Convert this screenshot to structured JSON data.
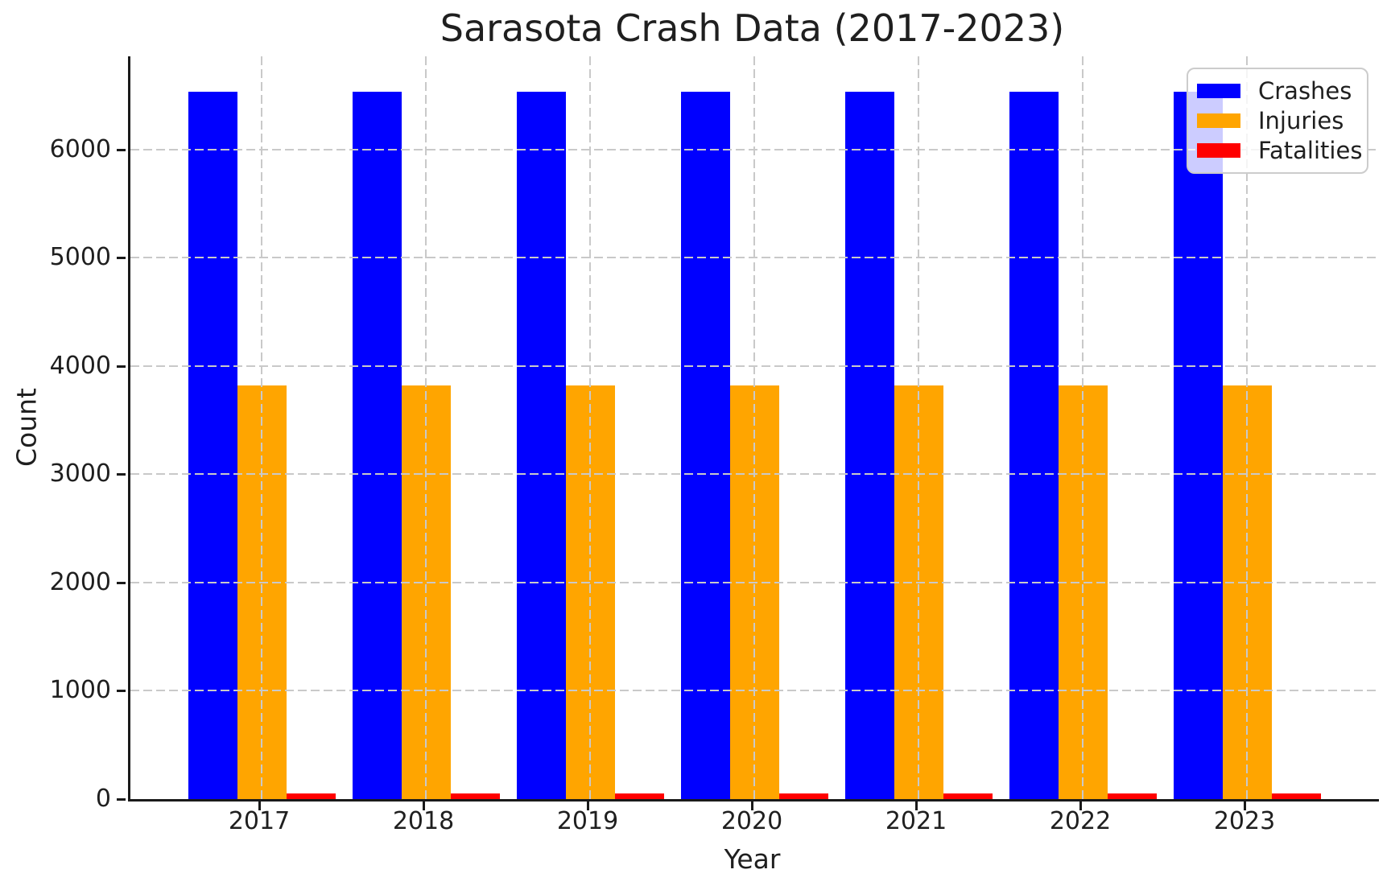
{
  "chart_data": {
    "type": "bar",
    "title": "Sarasota Crash Data (2017-2023)",
    "xlabel": "Year",
    "ylabel": "Count",
    "categories": [
      "2017",
      "2018",
      "2019",
      "2020",
      "2021",
      "2022",
      "2023"
    ],
    "series": [
      {
        "name": "Crashes",
        "color": "#0000ff",
        "values": [
          6530,
          6530,
          6530,
          6530,
          6530,
          6530,
          6530
        ]
      },
      {
        "name": "Injuries",
        "color": "#ffa500",
        "values": [
          3820,
          3820,
          3820,
          3820,
          3820,
          3820,
          3820
        ]
      },
      {
        "name": "Fatalities",
        "color": "#ff0000",
        "values": [
          50,
          50,
          50,
          50,
          50,
          50,
          50
        ]
      }
    ],
    "ylim": [
      0,
      6860
    ],
    "yticks": [
      0,
      1000,
      2000,
      3000,
      4000,
      5000,
      6000
    ],
    "grid": {
      "shown": true,
      "style": "dashed",
      "color": "#c9c9c9",
      "over_bars": true
    },
    "legend": {
      "position": "upper right",
      "entries": [
        "Crashes",
        "Injuries",
        "Fatalities"
      ]
    },
    "colors": {
      "spine": "#1a1a1a",
      "text": "#1f1f1f",
      "background": "#ffffff"
    }
  }
}
